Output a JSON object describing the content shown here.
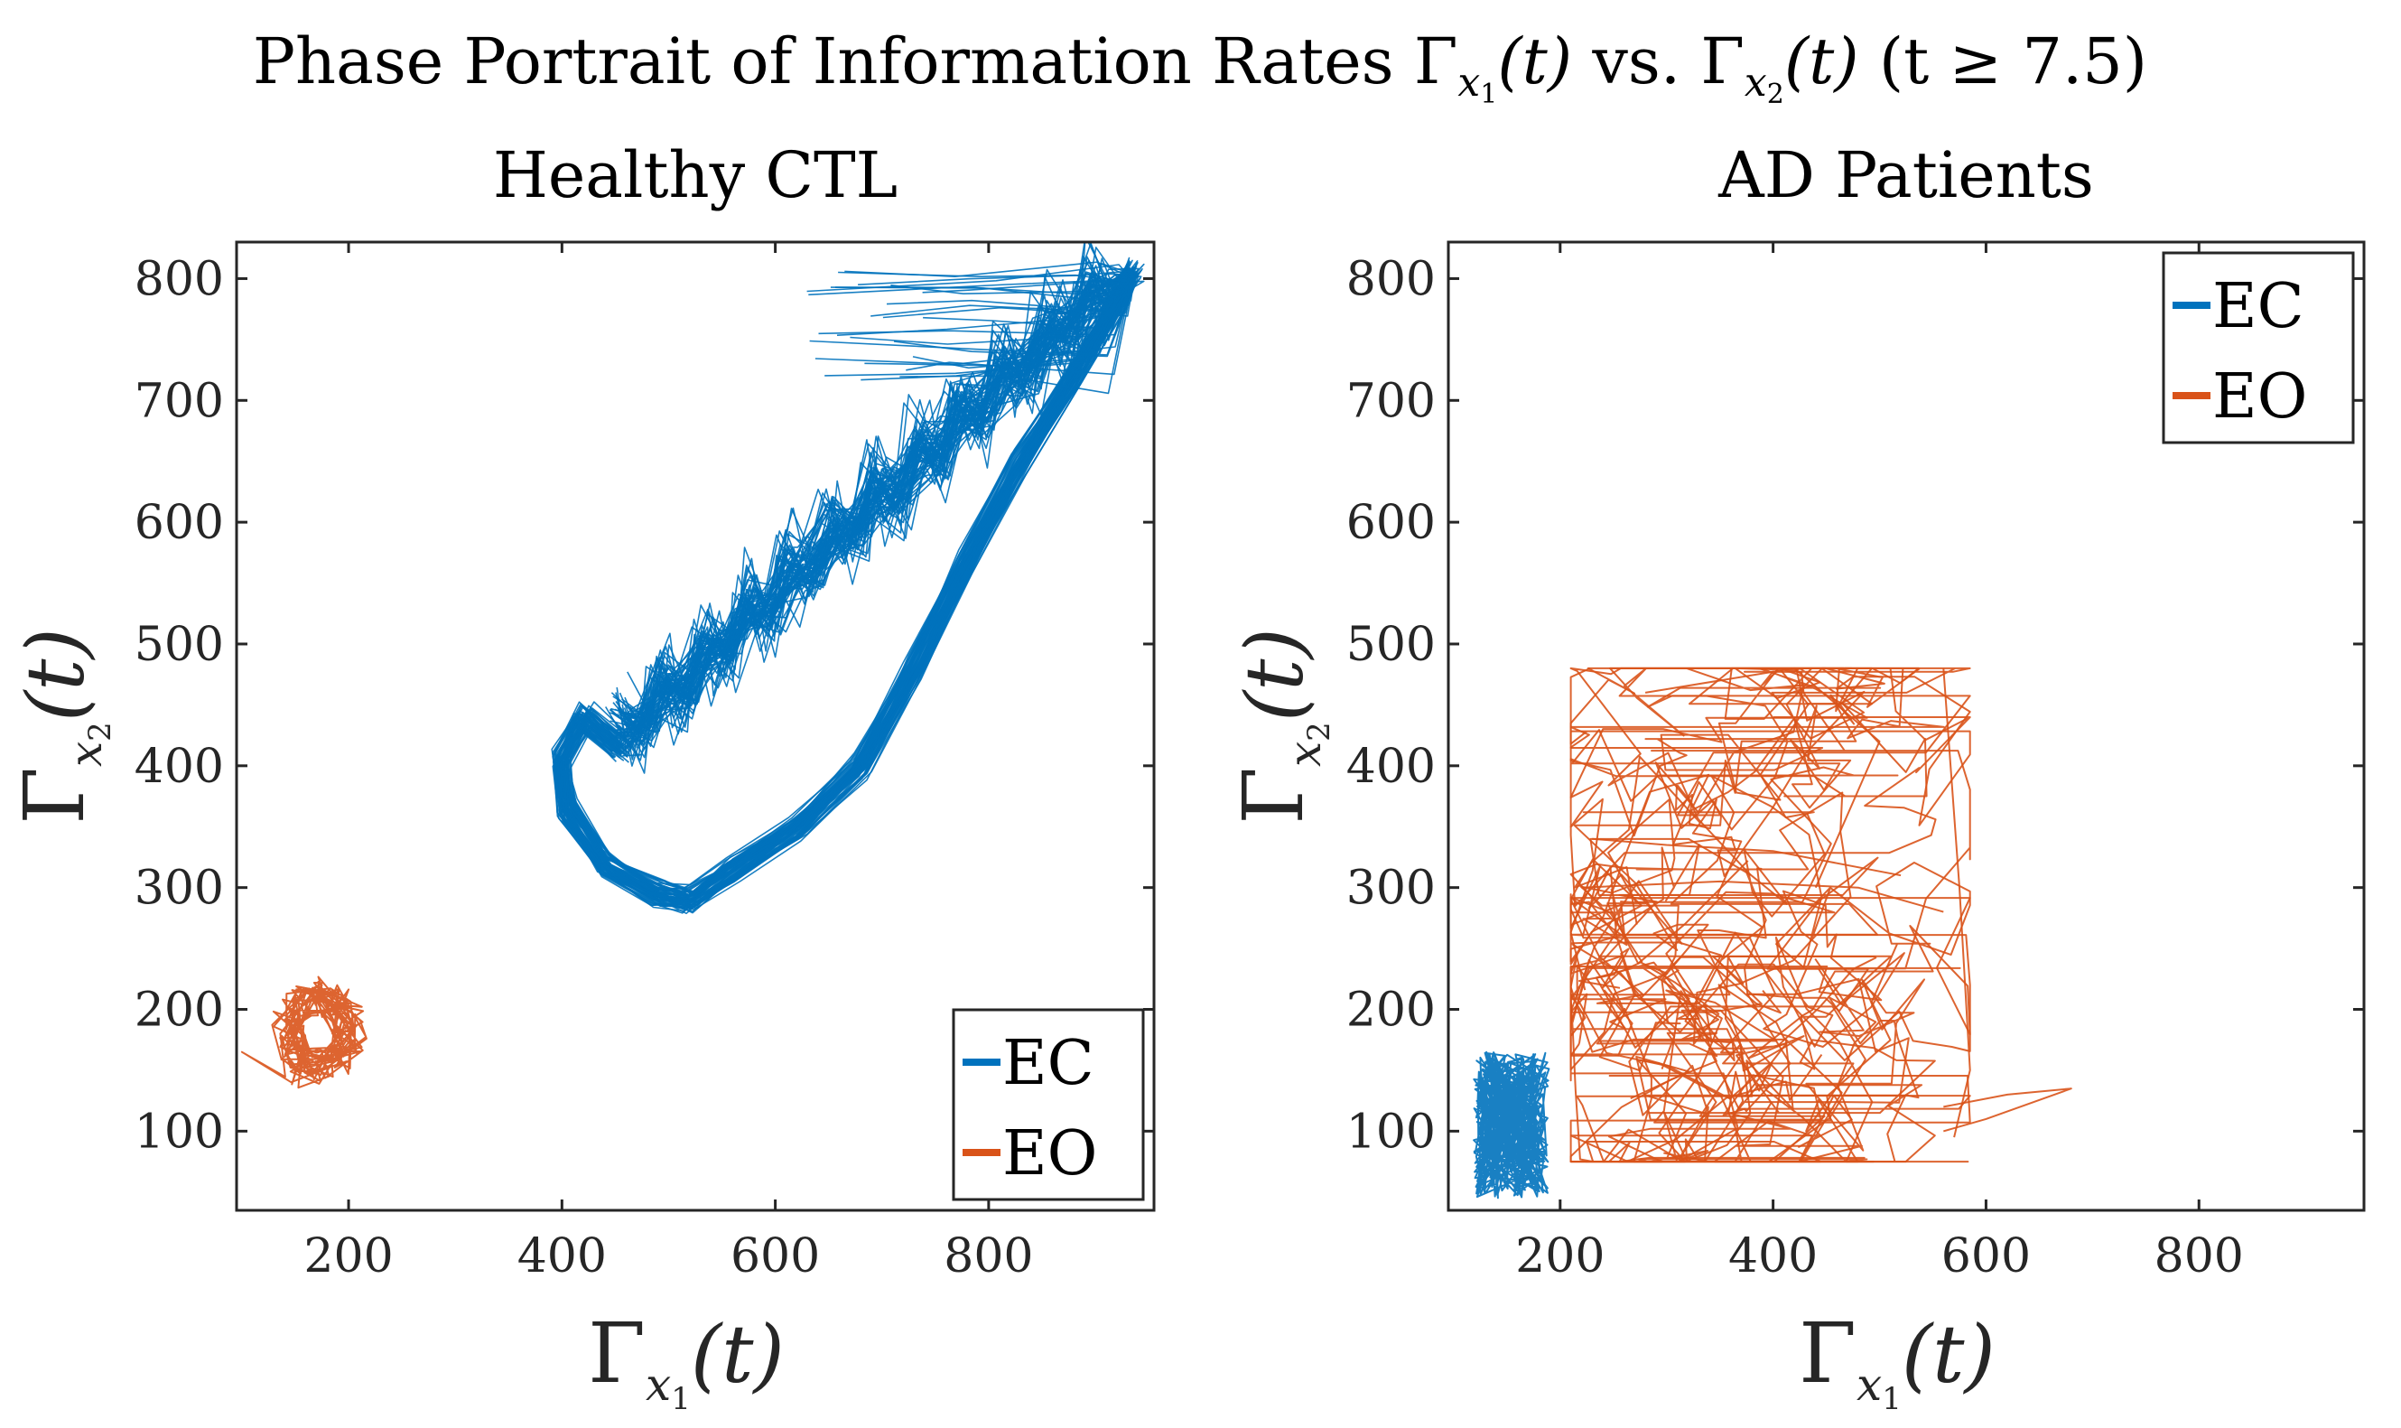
{
  "figure": {
    "title_parts": [
      "Phase Portrait of Information Rates ",
      "Γ",
      "x",
      "1",
      "(t)",
      " vs. ",
      "Γ",
      "x",
      "2",
      "(t)",
      " (t ≥ 7.5)"
    ]
  },
  "chart_data": [
    {
      "type": "line",
      "panel": "left",
      "title": "Healthy CTL",
      "xlabel": {
        "main": "Γ",
        "sub": "x",
        "subsub": "1",
        "arg": "(t)"
      },
      "ylabel": {
        "main": "Γ",
        "sub": "x",
        "subsub": "2",
        "arg": "(t)"
      },
      "xlim": [
        95,
        955
      ],
      "ylim": [
        35,
        830
      ],
      "xticks": [
        200,
        400,
        600,
        800
      ],
      "yticks": [
        100,
        200,
        300,
        400,
        500,
        600,
        700,
        800
      ],
      "xtick_labels": [
        "200",
        "400",
        "600",
        "800"
      ],
      "ytick_labels": [
        "100",
        "200",
        "300",
        "400",
        "500",
        "600",
        "700",
        "800"
      ],
      "legend": {
        "location": "bottom-right",
        "entries": [
          "EC",
          "EO"
        ]
      },
      "series": [
        {
          "name": "EC",
          "color": "#0072BD",
          "description_points": [
            [
              455,
              415
            ],
            [
              410,
              445
            ],
            [
              398,
              400
            ],
            [
              415,
              340
            ],
            [
              460,
              300
            ],
            [
              515,
              290
            ],
            [
              580,
              330
            ],
            [
              650,
              370
            ],
            [
              720,
              470
            ],
            [
              790,
              610
            ],
            [
              860,
              710
            ],
            [
              930,
              810
            ],
            [
              940,
              780
            ],
            [
              850,
              700
            ],
            [
              700,
              610
            ],
            [
              560,
              520
            ],
            [
              455,
              415
            ]
          ]
        },
        {
          "name": "EO",
          "color": "#D95319",
          "description_points": [
            [
              170,
              195
            ],
            [
              200,
              185
            ],
            [
              190,
              160
            ],
            [
              160,
              150
            ],
            [
              140,
              170
            ],
            [
              165,
              205
            ],
            [
              195,
              210
            ],
            [
              210,
              180
            ],
            [
              180,
              130
            ],
            [
              150,
              160
            ],
            [
              130,
              175
            ],
            [
              175,
              215
            ],
            [
              205,
              195
            ],
            [
              185,
              150
            ]
          ]
        }
      ]
    },
    {
      "type": "line",
      "panel": "right",
      "title": "AD Patients",
      "xlabel": {
        "main": "Γ",
        "sub": "x",
        "subsub": "1",
        "arg": "(t)"
      },
      "ylabel": {
        "main": "Γ",
        "sub": "x",
        "subsub": "2",
        "arg": "(t)"
      },
      "xlim": [
        95,
        955
      ],
      "ylim": [
        35,
        830
      ],
      "xticks": [
        200,
        400,
        600,
        800
      ],
      "yticks": [
        100,
        200,
        300,
        400,
        500,
        600,
        700,
        800
      ],
      "xtick_labels": [
        "200",
        "400",
        "600",
        "800"
      ],
      "ytick_labels": [
        "100",
        "200",
        "300",
        "400",
        "500",
        "600",
        "700",
        "800"
      ],
      "legend": {
        "location": "top-right",
        "entries": [
          "EC",
          "EO"
        ]
      },
      "series": [
        {
          "name": "EC",
          "color": "#0072BD",
          "description_points": [
            [
              130,
              160
            ],
            [
              175,
              150
            ],
            [
              160,
              120
            ],
            [
              125,
              100
            ],
            [
              150,
              70
            ],
            [
              185,
              90
            ],
            [
              140,
              130
            ],
            [
              170,
              160
            ],
            [
              120,
              80
            ],
            [
              160,
              50
            ],
            [
              130,
              40
            ]
          ]
        },
        {
          "name": "EO",
          "color": "#D95319",
          "description_points": [
            [
              230,
              180
            ],
            [
              400,
              200
            ],
            [
              580,
              150
            ],
            [
              500,
              480
            ],
            [
              300,
              470
            ],
            [
              220,
              300
            ],
            [
              450,
              260
            ],
            [
              600,
              110
            ],
            [
              680,
              130
            ],
            [
              350,
              140
            ],
            [
              250,
              330
            ],
            [
              560,
              420
            ],
            [
              420,
              90
            ]
          ]
        }
      ]
    }
  ]
}
